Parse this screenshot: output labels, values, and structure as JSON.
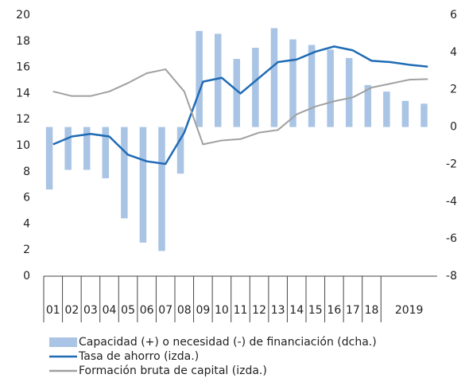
{
  "chart_data": {
    "type": "bar",
    "categories": [
      "01",
      "02",
      "03",
      "04",
      "05",
      "06",
      "07",
      "08",
      "09",
      "10",
      "11",
      "12",
      "13",
      "14",
      "15",
      "16",
      "17",
      "18",
      null,
      "2019",
      null
    ],
    "series": [
      {
        "name": "Capacidad (+) o necesidad (-) de financiación (dcha.)",
        "type": "bar",
        "axis": "y2",
        "color": "#a9c4e4",
        "values": [
          -3.35,
          -2.3,
          -2.3,
          -2.75,
          -4.9,
          -6.2,
          -6.65,
          -2.5,
          5.15,
          5.0,
          3.65,
          4.25,
          5.3,
          4.7,
          4.4,
          4.15,
          3.7,
          2.25,
          1.9,
          1.4,
          1.25
        ]
      },
      {
        "name": "Tasa de ahorro (izda.)",
        "type": "line",
        "axis": "y",
        "color": "#1f6bb5",
        "values": [
          10.1,
          10.7,
          10.9,
          10.7,
          9.3,
          8.8,
          8.6,
          11.0,
          14.9,
          15.2,
          14.0,
          15.2,
          16.4,
          16.6,
          17.2,
          17.6,
          17.3,
          16.5,
          16.4,
          16.2,
          16.05
        ]
      },
      {
        "name": "Formación bruta de capital (izda.)",
        "type": "line",
        "axis": "y",
        "color": "#a0a0a0",
        "values": [
          14.15,
          13.8,
          13.8,
          14.15,
          14.8,
          15.55,
          15.85,
          14.15,
          10.1,
          10.4,
          10.5,
          11.0,
          11.2,
          12.4,
          13.0,
          13.4,
          13.7,
          14.45,
          14.75,
          15.05,
          15.1
        ]
      }
    ],
    "ylim": [
      0,
      20
    ],
    "yticks": [
      0,
      2,
      4,
      6,
      8,
      10,
      12,
      14,
      16,
      18,
      20
    ],
    "y2lim": [
      -8,
      6
    ],
    "y2ticks": [
      -8,
      -6,
      -4,
      -2,
      0,
      2,
      4,
      6
    ],
    "grid": false
  }
}
